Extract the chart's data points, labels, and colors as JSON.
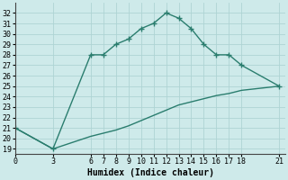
{
  "line1_x": [
    0,
    3,
    6,
    7,
    8,
    9,
    10,
    11,
    12,
    13,
    14,
    15,
    16,
    17,
    18,
    21
  ],
  "line1_y": [
    21,
    19,
    28,
    28,
    29,
    29.5,
    30.5,
    31,
    32,
    31.5,
    30.5,
    29,
    28,
    28,
    27,
    25
  ],
  "line2_x": [
    0,
    3,
    6,
    7,
    8,
    9,
    10,
    11,
    12,
    13,
    14,
    15,
    16,
    17,
    18,
    21
  ],
  "line2_y": [
    21,
    19,
    20.2,
    20.5,
    20.8,
    21.2,
    21.7,
    22.2,
    22.7,
    23.2,
    23.5,
    23.8,
    24.1,
    24.3,
    24.6,
    25
  ],
  "color": "#2a7d6e",
  "bg_color": "#ceeaea",
  "grid_color": "#aed4d4",
  "xlabel": "Humidex (Indice chaleur)",
  "xticks": [
    0,
    3,
    6,
    7,
    8,
    9,
    10,
    11,
    12,
    13,
    14,
    15,
    16,
    17,
    18,
    21
  ],
  "yticks": [
    19,
    20,
    21,
    22,
    23,
    24,
    25,
    26,
    27,
    28,
    29,
    30,
    31,
    32
  ],
  "ylim": [
    18.5,
    33.0
  ],
  "xlim": [
    0,
    21.5
  ],
  "marker": "+",
  "markersize": 4,
  "linewidth": 1.0,
  "fontsize_label": 7,
  "fontsize_tick": 6
}
